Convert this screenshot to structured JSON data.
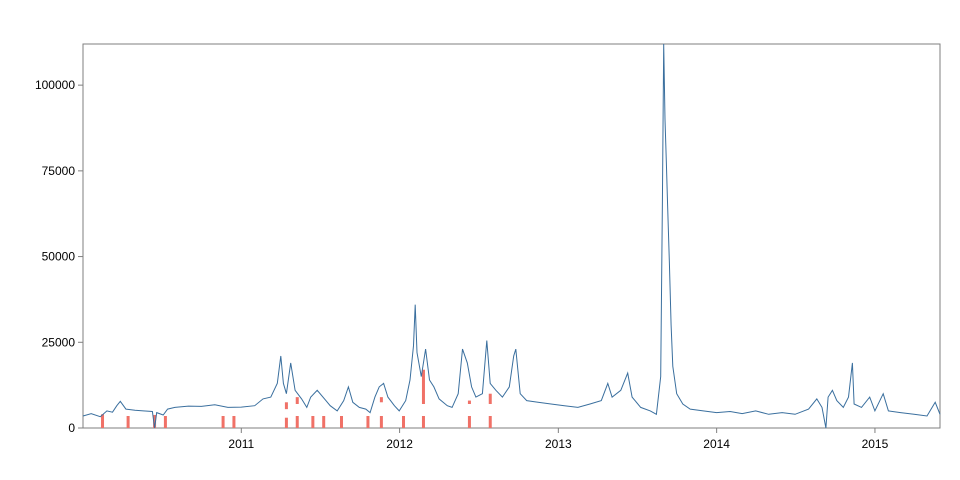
{
  "chart_data": {
    "type": "line",
    "title": "",
    "xlabel": "",
    "ylabel": "",
    "x_range": [
      "2010-01-01",
      "2015-05-31"
    ],
    "ylim": [
      0,
      112000
    ],
    "x_ticks": [
      {
        "date": "2011-01-01",
        "label": "2011"
      },
      {
        "date": "2012-01-01",
        "label": "2012"
      },
      {
        "date": "2013-01-01",
        "label": "2013"
      },
      {
        "date": "2014-01-01",
        "label": "2014"
      },
      {
        "date": "2015-01-01",
        "label": "2015"
      }
    ],
    "y_ticks": [
      {
        "value": 0,
        "label": "0"
      },
      {
        "value": 25000,
        "label": "25000"
      },
      {
        "value": 50000,
        "label": "50000"
      },
      {
        "value": 75000,
        "label": "75000"
      },
      {
        "value": 100000,
        "label": "100000"
      }
    ],
    "grid": false,
    "colors": {
      "series": "#3a6f9e",
      "markers": "#f07167",
      "frame": "#7f7f7f"
    },
    "series": [
      {
        "points": [
          [
            "2010-01-01",
            3500
          ],
          [
            "2010-01-20",
            4200
          ],
          [
            "2010-02-10",
            3300
          ],
          [
            "2010-02-25",
            5000
          ],
          [
            "2010-03-10",
            4600
          ],
          [
            "2010-03-20",
            6500
          ],
          [
            "2010-03-28",
            7800
          ],
          [
            "2010-04-10",
            5500
          ],
          [
            "2010-05-01",
            5200
          ],
          [
            "2010-05-20",
            5000
          ],
          [
            "2010-06-10",
            4800
          ],
          [
            "2010-06-15",
            0
          ],
          [
            "2010-06-20",
            4500
          ],
          [
            "2010-07-05",
            3800
          ],
          [
            "2010-07-15",
            5500
          ],
          [
            "2010-08-01",
            6000
          ],
          [
            "2010-09-01",
            6400
          ],
          [
            "2010-10-01",
            6300
          ],
          [
            "2010-11-01",
            6800
          ],
          [
            "2010-12-01",
            6000
          ],
          [
            "2011-01-01",
            6100
          ],
          [
            "2011-02-01",
            6500
          ],
          [
            "2011-02-20",
            8500
          ],
          [
            "2011-03-10",
            9000
          ],
          [
            "2011-03-25",
            13000
          ],
          [
            "2011-04-02",
            21000
          ],
          [
            "2011-04-08",
            13000
          ],
          [
            "2011-04-15",
            10000
          ],
          [
            "2011-04-25",
            19000
          ],
          [
            "2011-05-05",
            11000
          ],
          [
            "2011-05-20",
            8500
          ],
          [
            "2011-06-01",
            6000
          ],
          [
            "2011-06-10",
            9000
          ],
          [
            "2011-06-25",
            11000
          ],
          [
            "2011-07-15",
            8000
          ],
          [
            "2011-07-25",
            6500
          ],
          [
            "2011-08-10",
            5000
          ],
          [
            "2011-08-25",
            8000
          ],
          [
            "2011-09-05",
            12000
          ],
          [
            "2011-09-15",
            7500
          ],
          [
            "2011-09-30",
            6000
          ],
          [
            "2011-10-15",
            5500
          ],
          [
            "2011-10-25",
            4500
          ],
          [
            "2011-11-05",
            9000
          ],
          [
            "2011-11-15",
            12000
          ],
          [
            "2011-11-25",
            13000
          ],
          [
            "2011-12-05",
            9000
          ],
          [
            "2011-12-20",
            6500
          ],
          [
            "2011-12-31",
            5000
          ],
          [
            "2012-01-15",
            8000
          ],
          [
            "2012-01-25",
            14000
          ],
          [
            "2012-02-02",
            24000
          ],
          [
            "2012-02-06",
            36000
          ],
          [
            "2012-02-10",
            22000
          ],
          [
            "2012-02-20",
            15000
          ],
          [
            "2012-03-01",
            23000
          ],
          [
            "2012-03-10",
            14000
          ],
          [
            "2012-03-20",
            12000
          ],
          [
            "2012-04-01",
            8500
          ],
          [
            "2012-04-20",
            6500
          ],
          [
            "2012-05-01",
            6000
          ],
          [
            "2012-05-15",
            10000
          ],
          [
            "2012-05-25",
            23000
          ],
          [
            "2012-06-05",
            19000
          ],
          [
            "2012-06-15",
            12000
          ],
          [
            "2012-06-25",
            9000
          ],
          [
            "2012-07-10",
            10000
          ],
          [
            "2012-07-20",
            25500
          ],
          [
            "2012-07-28",
            13000
          ],
          [
            "2012-08-10",
            11000
          ],
          [
            "2012-08-25",
            9000
          ],
          [
            "2012-09-10",
            12000
          ],
          [
            "2012-09-20",
            21000
          ],
          [
            "2012-09-25",
            23000
          ],
          [
            "2012-10-05",
            10000
          ],
          [
            "2012-10-20",
            8000
          ],
          [
            "2012-11-15",
            7500
          ],
          [
            "2012-12-15",
            7000
          ],
          [
            "2013-01-15",
            6500
          ],
          [
            "2013-02-15",
            6000
          ],
          [
            "2013-03-15",
            7000
          ],
          [
            "2013-04-10",
            8000
          ],
          [
            "2013-04-25",
            13000
          ],
          [
            "2013-05-05",
            9000
          ],
          [
            "2013-05-25",
            11000
          ],
          [
            "2013-06-10",
            16000
          ],
          [
            "2013-06-20",
            9000
          ],
          [
            "2013-07-10",
            6000
          ],
          [
            "2013-08-01",
            5000
          ],
          [
            "2013-08-15",
            4000
          ],
          [
            "2013-08-25",
            15000
          ],
          [
            "2013-08-29",
            66000
          ],
          [
            "2013-09-01",
            112000
          ],
          [
            "2013-09-04",
            90000
          ],
          [
            "2013-09-07",
            78000
          ],
          [
            "2013-09-10",
            65000
          ],
          [
            "2013-09-14",
            48000
          ],
          [
            "2013-09-18",
            30000
          ],
          [
            "2013-09-22",
            18000
          ],
          [
            "2013-10-01",
            10000
          ],
          [
            "2013-10-15",
            7000
          ],
          [
            "2013-11-01",
            5500
          ],
          [
            "2013-12-01",
            5000
          ],
          [
            "2014-01-01",
            4500
          ],
          [
            "2014-02-01",
            4800
          ],
          [
            "2014-03-01",
            4200
          ],
          [
            "2014-04-01",
            5000
          ],
          [
            "2014-05-01",
            4000
          ],
          [
            "2014-06-01",
            4500
          ],
          [
            "2014-07-01",
            4000
          ],
          [
            "2014-08-01",
            5500
          ],
          [
            "2014-08-20",
            8500
          ],
          [
            "2014-09-01",
            6000
          ],
          [
            "2014-09-10",
            0
          ],
          [
            "2014-09-15",
            9000
          ],
          [
            "2014-09-25",
            11000
          ],
          [
            "2014-10-05",
            8000
          ],
          [
            "2014-10-20",
            6000
          ],
          [
            "2014-11-01",
            9000
          ],
          [
            "2014-11-10",
            19000
          ],
          [
            "2014-11-14",
            7000
          ],
          [
            "2014-12-01",
            6000
          ],
          [
            "2014-12-20",
            9000
          ],
          [
            "2015-01-01",
            5000
          ],
          [
            "2015-01-20",
            10000
          ],
          [
            "2015-02-01",
            5000
          ],
          [
            "2015-03-01",
            4500
          ],
          [
            "2015-04-01",
            4000
          ],
          [
            "2015-05-01",
            3500
          ],
          [
            "2015-05-20",
            7500
          ],
          [
            "2015-05-31",
            4000
          ]
        ]
      }
    ],
    "markers": [
      {
        "date": "2010-02-15",
        "bottom": 0,
        "top": 4000
      },
      {
        "date": "2010-04-15",
        "bottom": 0,
        "top": 3500
      },
      {
        "date": "2010-06-15",
        "bottom": 0,
        "top": 3800
      },
      {
        "date": "2010-07-10",
        "bottom": 0,
        "top": 3500
      },
      {
        "date": "2010-11-20",
        "bottom": 0,
        "top": 3500
      },
      {
        "date": "2010-12-15",
        "bottom": 0,
        "top": 3500
      },
      {
        "date": "2011-04-15",
        "bottom": 0,
        "top": 3000
      },
      {
        "date": "2011-04-15",
        "bottom": 5500,
        "top": 7500
      },
      {
        "date": "2011-05-10",
        "bottom": 0,
        "top": 3500
      },
      {
        "date": "2011-05-10",
        "bottom": 7000,
        "top": 9000
      },
      {
        "date": "2011-06-15",
        "bottom": 0,
        "top": 3500
      },
      {
        "date": "2011-07-10",
        "bottom": 0,
        "top": 3500
      },
      {
        "date": "2011-08-20",
        "bottom": 0,
        "top": 3500
      },
      {
        "date": "2011-10-20",
        "bottom": 0,
        "top": 3500
      },
      {
        "date": "2011-11-20",
        "bottom": 0,
        "top": 3500
      },
      {
        "date": "2011-11-20",
        "bottom": 7500,
        "top": 9000
      },
      {
        "date": "2012-01-10",
        "bottom": 0,
        "top": 3500
      },
      {
        "date": "2012-02-25",
        "bottom": 0,
        "top": 3500
      },
      {
        "date": "2012-02-25",
        "bottom": 7000,
        "top": 17000
      },
      {
        "date": "2012-06-10",
        "bottom": 0,
        "top": 3500
      },
      {
        "date": "2012-06-10",
        "bottom": 7000,
        "top": 8000
      },
      {
        "date": "2012-07-28",
        "bottom": 0,
        "top": 3500
      },
      {
        "date": "2012-07-28",
        "bottom": 7000,
        "top": 10000
      }
    ]
  }
}
